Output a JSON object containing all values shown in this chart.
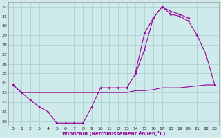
{
  "xlabel": "Windchill (Refroidissement éolien,°C)",
  "hours": [
    0,
    1,
    2,
    3,
    4,
    5,
    6,
    7,
    8,
    9,
    10,
    11,
    12,
    13,
    14,
    15,
    16,
    17,
    18,
    19,
    20,
    21,
    22,
    23
  ],
  "line_flat": [
    23.8,
    23.0,
    23.0,
    23.0,
    23.0,
    23.0,
    23.0,
    23.0,
    23.0,
    23.0,
    23.0,
    23.0,
    23.0,
    23.0,
    23.2,
    23.2,
    23.3,
    23.5,
    23.5,
    23.5,
    23.6,
    23.7,
    23.8,
    23.8
  ],
  "line_bottom": [
    23.8,
    23.0,
    22.2,
    21.5,
    21.0,
    19.8,
    19.8,
    19.8,
    19.8,
    21.5,
    null,
    null,
    null,
    null,
    null,
    null,
    null,
    null,
    null,
    null,
    null,
    null,
    null,
    null
  ],
  "line_main": [
    23.8,
    23.0,
    22.2,
    21.5,
    21.0,
    19.8,
    19.8,
    19.8,
    19.8,
    21.5,
    23.5,
    23.5,
    23.5,
    23.5,
    25.0,
    27.5,
    30.8,
    32.0,
    31.2,
    31.0,
    30.5,
    29.0,
    27.0,
    23.8
  ],
  "line_top": [
    null,
    null,
    null,
    null,
    null,
    null,
    null,
    null,
    null,
    null,
    null,
    null,
    null,
    null,
    25.2,
    29.2,
    30.8,
    32.0,
    31.5,
    31.2,
    30.8,
    null,
    null,
    null
  ],
  "line_color": "#990099",
  "bg_color": "#ceeaea",
  "grid_color": "#aacccc",
  "xlim": [
    -0.5,
    23.5
  ],
  "ylim": [
    19.5,
    32.5
  ],
  "yticks": [
    20,
    21,
    22,
    23,
    24,
    25,
    26,
    27,
    28,
    29,
    30,
    31,
    32
  ],
  "xticks": [
    0,
    1,
    2,
    3,
    4,
    5,
    6,
    7,
    8,
    9,
    10,
    11,
    12,
    13,
    14,
    15,
    16,
    17,
    18,
    19,
    20,
    21,
    22,
    23
  ]
}
